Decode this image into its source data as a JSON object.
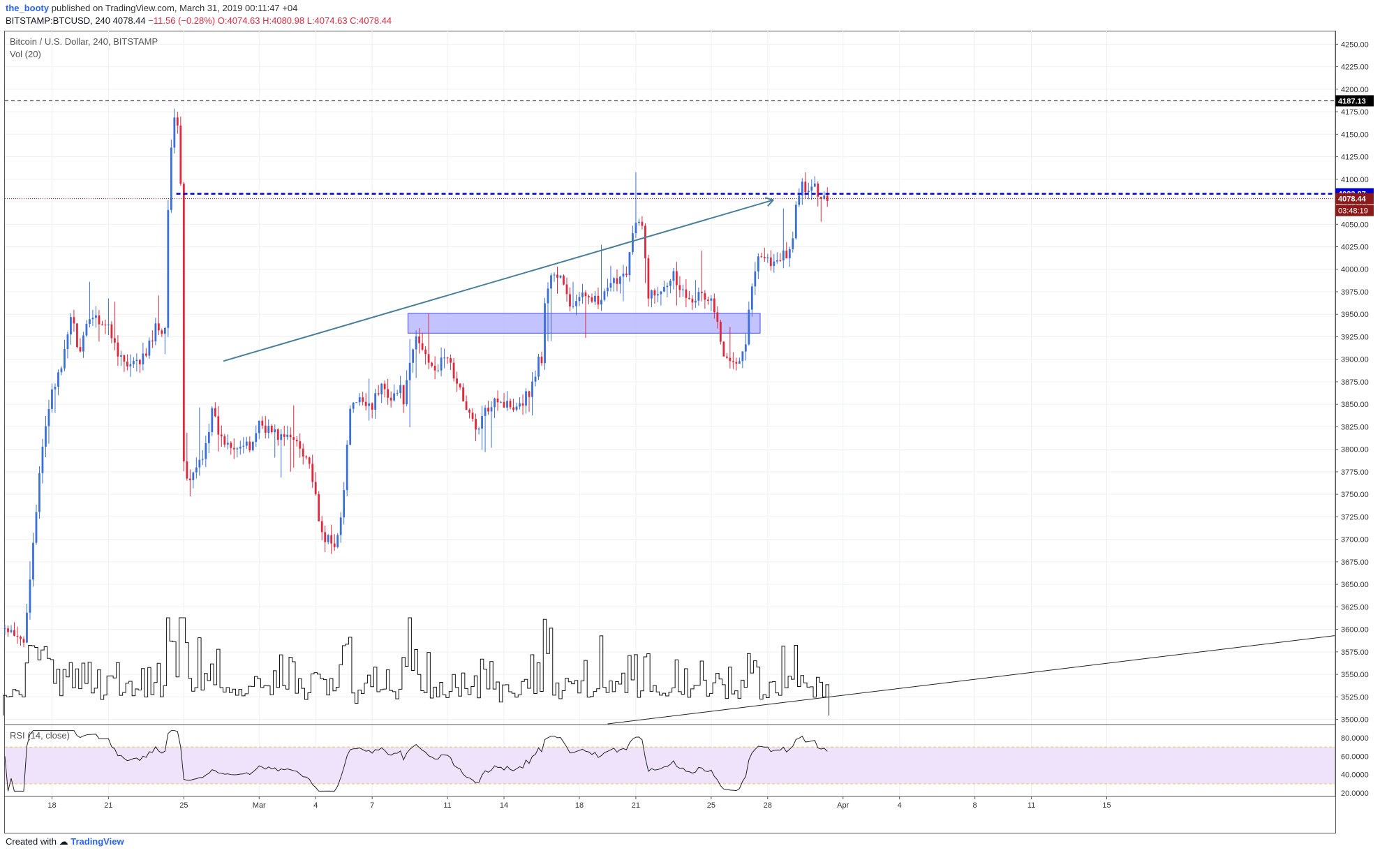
{
  "header": {
    "author": "the_booty",
    "published": "published on TradingView.com, March 31, 2019 00:11:47 +04",
    "symbol": "BITSTAMP:BTCUSD, 240",
    "last": "4078.44",
    "change": "−11.56 (−0.28%)",
    "ohlc": "O:4074.63 H:4080.98 L:4074.63 C:4078.44"
  },
  "chart_title": "Bitcoin / U.S. Dollar, 240, BITSTAMP",
  "vol_label": "Vol (20)",
  "rsi_label": "RSI (14, close)",
  "footer": {
    "created": "Created with",
    "brand": "TradingView"
  },
  "colors": {
    "up": "#3a6fd8",
    "down": "#e0283c",
    "zone": "#b4b4ff",
    "trend": "#4a7f99",
    "dash_blue": "#0000cc",
    "rsi_band": "#efe3fb"
  },
  "chart_data": {
    "type": "candlestick",
    "price_axis": {
      "range": [
        3495,
        4265
      ],
      "ticks": [
        3500,
        3525,
        3550,
        3575,
        3600,
        3625,
        3650,
        3675,
        3700,
        3725,
        3750,
        3775,
        3800,
        3825,
        3850,
        3875,
        3900,
        3925,
        3950,
        3975,
        4000,
        4025,
        4050,
        4075,
        4100,
        4125,
        4150,
        4175,
        4200,
        4225,
        4250
      ],
      "tick_labels": [
        "3500.00",
        "3525.00",
        "3550.00",
        "3575.00",
        "3600.00",
        "3625.00",
        "3650.00",
        "3675.00",
        "3700.00",
        "3725.00",
        "3750.00",
        "3775.00",
        "3800.00",
        "3825.00",
        "3850.00",
        "3875.00",
        "3900.00",
        "3925.00",
        "3950.00",
        "3975.00",
        "4000.00",
        "4025.00",
        "4050.00",
        "4075.00",
        "4100.00",
        "4125.00",
        "4150.00",
        "4175.00",
        "4200.00",
        "4225.00",
        "4250.00"
      ]
    },
    "time_axis": {
      "range_days": [
        -12.5,
        58.1
      ],
      "labels": [
        {
          "day": -10,
          "text": "18"
        },
        {
          "day": -7,
          "text": "21"
        },
        {
          "day": -3,
          "text": "25"
        },
        {
          "day": 1,
          "text": "Mar"
        },
        {
          "day": 4,
          "text": "4"
        },
        {
          "day": 7,
          "text": "7"
        },
        {
          "day": 11,
          "text": "11"
        },
        {
          "day": 14,
          "text": "14"
        },
        {
          "day": 18,
          "text": "18"
        },
        {
          "day": 21,
          "text": "21"
        },
        {
          "day": 25,
          "text": "25"
        },
        {
          "day": 28,
          "text": "28"
        },
        {
          "day": 32,
          "text": "Apr"
        },
        {
          "day": 35,
          "text": "4"
        },
        {
          "day": 39,
          "text": "8"
        },
        {
          "day": 42,
          "text": "11"
        },
        {
          "day": 46,
          "text": "15"
        }
      ]
    },
    "price_badges": [
      {
        "value": 4187.13,
        "label": "4187.13",
        "color": "#000000",
        "style": "dashed-black"
      },
      {
        "value": 4083.87,
        "label": "4083.87",
        "color": "#0000cc",
        "style": "dashed-blue"
      },
      {
        "value": 4078.44,
        "label": "4078.44",
        "color": "#8b1a1a",
        "style": "dotted-red"
      }
    ],
    "countdown": "03:48:19",
    "support_zone": {
      "from_day": 8.9,
      "to_day": 27.6,
      "low": 3929,
      "high": 3951
    },
    "trendline_arrow": {
      "from": [
        -0.9,
        3898
      ],
      "to": [
        28.3,
        4077
      ]
    },
    "anchor_points": [
      [
        -12.5,
        3600
      ],
      [
        -12,
        3590
      ],
      [
        -11.5,
        3585
      ],
      [
        -11,
        3700
      ],
      [
        -10.5,
        3800
      ],
      [
        -10,
        3870
      ],
      [
        -9.5,
        3885
      ],
      [
        -9,
        3950
      ],
      [
        -8.5,
        3905
      ],
      [
        -8,
        3950
      ],
      [
        -7.5,
        3945
      ],
      [
        -7,
        3935
      ],
      [
        -6.5,
        3910
      ],
      [
        -6,
        3890
      ],
      [
        -5.5,
        3895
      ],
      [
        -5,
        3905
      ],
      [
        -4.5,
        3935
      ],
      [
        -4,
        3935
      ],
      [
        -3.8,
        4100
      ],
      [
        -3.6,
        4160
      ],
      [
        -3.4,
        4165
      ],
      [
        -3.2,
        4160
      ],
      [
        -3,
        3785
      ],
      [
        -2.8,
        3760
      ],
      [
        -2.5,
        3770
      ],
      [
        -2,
        3795
      ],
      [
        -1.5,
        3840
      ],
      [
        -1,
        3810
      ],
      [
        0,
        3805
      ],
      [
        0.5,
        3800
      ],
      [
        1,
        3830
      ],
      [
        2,
        3815
      ],
      [
        3,
        3810
      ],
      [
        3.6,
        3790
      ],
      [
        3.9,
        3760
      ],
      [
        4.2,
        3710
      ],
      [
        4.6,
        3700
      ],
      [
        5,
        3690
      ],
      [
        5.5,
        3750
      ],
      [
        5.8,
        3845
      ],
      [
        6.5,
        3855
      ],
      [
        7,
        3850
      ],
      [
        7.5,
        3870
      ],
      [
        8,
        3860
      ],
      [
        8.5,
        3865
      ],
      [
        8.7,
        3855
      ],
      [
        9,
        3890
      ],
      [
        9.3,
        3925
      ],
      [
        9.7,
        3910
      ],
      [
        10,
        3900
      ],
      [
        10.5,
        3890
      ],
      [
        11,
        3905
      ],
      [
        11.5,
        3870
      ],
      [
        12,
        3850
      ],
      [
        12.5,
        3820
      ],
      [
        13,
        3840
      ],
      [
        13.5,
        3860
      ],
      [
        14,
        3850
      ],
      [
        14.5,
        3850
      ],
      [
        15,
        3855
      ],
      [
        15.5,
        3870
      ],
      [
        15.8,
        3900
      ],
      [
        16,
        3900
      ],
      [
        16.2,
        3970
      ],
      [
        16.5,
        3995
      ],
      [
        17,
        3990
      ],
      [
        17.5,
        3960
      ],
      [
        18,
        3965
      ],
      [
        18.5,
        3975
      ],
      [
        19,
        3960
      ],
      [
        19.5,
        3975
      ],
      [
        20,
        3990
      ],
      [
        20.5,
        4000
      ],
      [
        20.8,
        4035
      ],
      [
        21,
        4050
      ],
      [
        21.4,
        4045
      ],
      [
        21.6,
        3975
      ],
      [
        22,
        3970
      ],
      [
        22.5,
        3985
      ],
      [
        23,
        3995
      ],
      [
        23.5,
        3975
      ],
      [
        24,
        3970
      ],
      [
        24.5,
        3970
      ],
      [
        25,
        3965
      ],
      [
        25.3,
        3945
      ],
      [
        25.6,
        3900
      ],
      [
        26,
        3905
      ],
      [
        26.5,
        3900
      ],
      [
        26.8,
        3915
      ],
      [
        27.1,
        3970
      ],
      [
        27.5,
        4020
      ],
      [
        28,
        4010
      ],
      [
        28.5,
        4005
      ],
      [
        28.8,
        4015
      ],
      [
        29.2,
        4020
      ],
      [
        29.5,
        4065
      ],
      [
        29.8,
        4095
      ],
      [
        30.1,
        4085
      ],
      [
        30.4,
        4090
      ],
      [
        30.8,
        4085
      ],
      [
        31.2,
        4078
      ]
    ],
    "volume_axis": {
      "max": 1
    },
    "rsi_axis": {
      "range": [
        17,
        93
      ],
      "ticks": [
        20,
        40,
        60,
        80
      ],
      "tick_labels": [
        "20.0000",
        "40.0000",
        "60.0000",
        "80.0000"
      ],
      "band": [
        30,
        70
      ]
    },
    "xlabel": "",
    "ylabel": ""
  }
}
